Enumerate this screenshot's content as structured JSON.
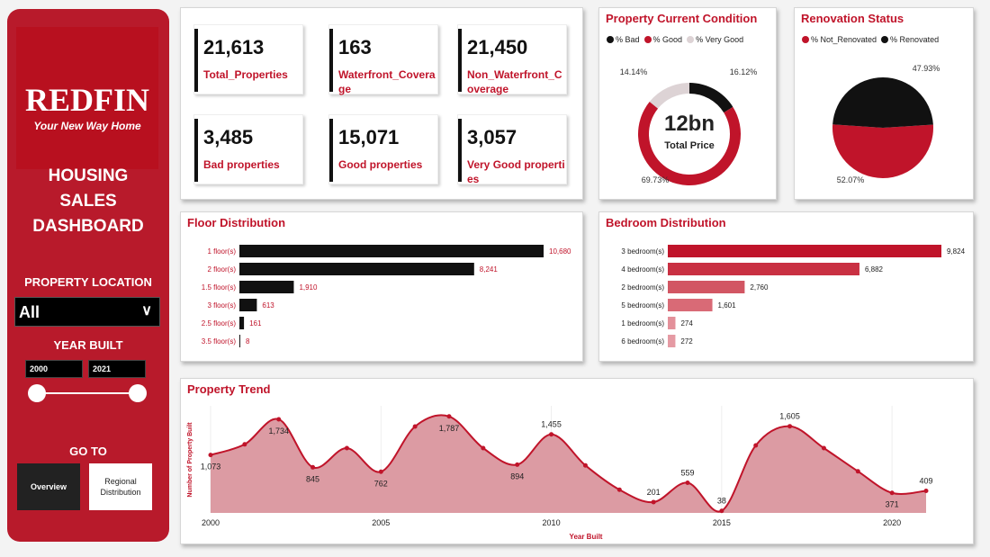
{
  "sidebar": {
    "logo_text": "REDFIN",
    "logo_tagline": "Your New Way Home",
    "title_lines": [
      "HOUSING",
      "SALES",
      "DASHBOARD"
    ],
    "location_label": "PROPERTY LOCATION",
    "location_value": "All",
    "year_label": "YEAR BUILT",
    "year_from": "2000",
    "year_to": "2021",
    "goto_label": "GO TO",
    "nav": [
      {
        "label": "Overview"
      },
      {
        "label": "Regional Distribution"
      }
    ]
  },
  "kpis": [
    {
      "value": "21,613",
      "label": "Total_Properties"
    },
    {
      "value": "163",
      "label": "Waterfront_Coverage"
    },
    {
      "value": "21,450",
      "label": "Non_Waterfront_Coverage"
    },
    {
      "value": "3,485",
      "label": "Bad properties"
    },
    {
      "value": "15,071",
      "label": "Good properties"
    },
    {
      "value": "3,057",
      "label": "Very Good properties"
    }
  ],
  "colors": {
    "brand": "#b81a2b",
    "accent": "#c0142a",
    "dark": "#111111",
    "light": "#ddd3d5"
  },
  "chart_data": [
    {
      "type": "pie",
      "variant": "donut",
      "title": "Property Current Condition",
      "center_value": "12bn",
      "center_label": "Total Price",
      "legend": "top",
      "slices": [
        {
          "name": "% Bad",
          "value": 16.12,
          "label": "16.12%",
          "color": "#111111"
        },
        {
          "name": "% Good",
          "value": 69.73,
          "label": "69.73%",
          "color": "#c0142a"
        },
        {
          "name": "% Very Good",
          "value": 14.14,
          "label": "14.14%",
          "color": "#ddd3d5"
        }
      ]
    },
    {
      "type": "pie",
      "title": "Renovation Status",
      "legend": "top",
      "slices": [
        {
          "name": "% Not_Renovated",
          "value": 52.07,
          "label": "52.07%",
          "color": "#c0142a"
        },
        {
          "name": "% Renovated",
          "value": 47.93,
          "label": "47.93%",
          "color": "#111111"
        }
      ]
    },
    {
      "type": "bar",
      "orientation": "horizontal",
      "title": "Floor Distribution",
      "categories": [
        "1 floor(s)",
        "2 floor(s)",
        "1.5 floor(s)",
        "3 floor(s)",
        "2.5 floor(s)",
        "3.5 floor(s)"
      ],
      "values": [
        10680,
        8241,
        1910,
        613,
        161,
        8
      ],
      "labels": [
        "10,680",
        "8,241",
        "1,910",
        "613",
        "161",
        "8"
      ],
      "color": "#111111"
    },
    {
      "type": "bar",
      "orientation": "horizontal",
      "title": "Bedroom Distribution",
      "categories": [
        "3 bedroom(s)",
        "4 bedroom(s)",
        "2 bedroom(s)",
        "5 bedroom(s)",
        "1 bedroom(s)",
        "6 bedroom(s)"
      ],
      "values": [
        9824,
        6882,
        2760,
        1601,
        274,
        272
      ],
      "labels": [
        "9,824",
        "6,882",
        "2,760",
        "1,601",
        "274",
        "272"
      ],
      "colors": [
        "#c0142a",
        "#c93042",
        "#d25663",
        "#d96a76",
        "#e3909a",
        "#e59aa3"
      ]
    },
    {
      "type": "area",
      "title": "Property Trend",
      "xlabel": "Year Built",
      "ylabel": "Number of Property Built",
      "x": [
        2000,
        2001,
        2002,
        2003,
        2004,
        2005,
        2006,
        2007,
        2008,
        2009,
        2010,
        2011,
        2012,
        2013,
        2014,
        2015,
        2016,
        2017,
        2018,
        2019,
        2020,
        2021
      ],
      "y": [
        1073,
        1270,
        1734,
        845,
        1200,
        762,
        1600,
        1787,
        1200,
        894,
        1455,
        880,
        430,
        201,
        559,
        38,
        1250,
        1605,
        1200,
        770,
        371,
        409
      ],
      "point_labels": {
        "2000": "1,073",
        "2002": "1,734",
        "2003": "845",
        "2005": "762",
        "2007": "1,787",
        "2009": "894",
        "2010": "1,455",
        "2013": "201",
        "2014": "559",
        "2015": "38",
        "2017": "1,605",
        "2020": "371",
        "2021": "409"
      },
      "xticks": [
        "2000",
        "2005",
        "2010",
        "2015",
        "2020"
      ],
      "ylim": [
        0,
        2000
      ],
      "line_color": "#c0142a",
      "fill_color": "#dc9ba3"
    }
  ]
}
